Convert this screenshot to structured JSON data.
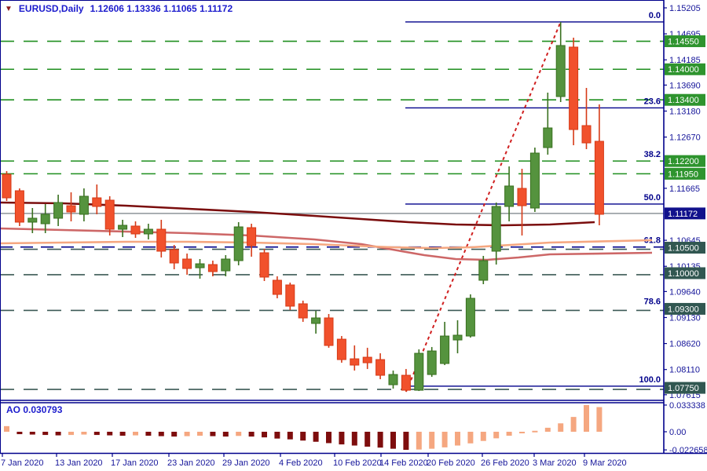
{
  "window": {
    "marker": "▼",
    "symbol_period": "EURUSD,Daily",
    "quote_line": "1.12606 1.13336 1.11065 1.11172"
  },
  "ao_panel": {
    "label_display": "AO 0.030793",
    "indicator_name": "AO",
    "current_value": "0.030793",
    "axis_labels": [
      "0.033338",
      "0.00",
      "-0.022658"
    ],
    "axis_values": [
      0.033338,
      0.0,
      -0.022658
    ]
  },
  "axes": {
    "price_labels": [
      "1.15205",
      "1.14695",
      "1.14185",
      "1.13690",
      "1.13180",
      "1.12670",
      "1.11665",
      "1.10645",
      "1.10135",
      "1.09640",
      "1.09130",
      "1.08620",
      "1.08110",
      "1.07615"
    ],
    "date_labels": [
      "7 Jan 2020",
      "13 Jan 2020",
      "17 Jan 2020",
      "23 Jan 2020",
      "29 Jan 2020",
      "4 Feb 2020",
      "10 Feb 2020",
      "14 Feb 2020",
      "20 Feb 2020",
      "26 Feb 2020",
      "3 Mar 2020",
      "9 Mar 2020"
    ]
  },
  "levels": {
    "green_badges": [
      "1.14550",
      "1.14000",
      "1.13400",
      "1.12200",
      "1.11950"
    ],
    "slate_badges": [
      "1.10500",
      "1.10000",
      "1.09300",
      "1.07750"
    ],
    "current_price_badge": "1.11172"
  },
  "fibonacci": {
    "swing_high": 1.14928,
    "swing_low": 1.07783,
    "levels": [
      {
        "label": "0.0",
        "ratio": 0.0
      },
      {
        "label": "23.6",
        "ratio": 0.236
      },
      {
        "label": "38.2",
        "ratio": 0.382
      },
      {
        "label": "50.0",
        "ratio": 0.5
      },
      {
        "label": "61.8",
        "ratio": 0.618
      },
      {
        "label": "78.6",
        "ratio": 0.786
      },
      {
        "label": "100.0",
        "ratio": 1.0
      }
    ]
  },
  "colors": {
    "axis_text": "#15159a",
    "title_text": "#1c1ccd",
    "navy_line": "#00008b",
    "green_badge": "#2e942e",
    "slate_badge": "#315751",
    "navy_badge": "#11118c",
    "green_dash": "#1f8f1f",
    "slate_dash": "#3c5a56",
    "gray_line": "#8e949a",
    "bull_fill": "#55933e",
    "bull_stroke": "#39701f",
    "bear_fill": "#f1512c",
    "bear_stroke": "#d63a17",
    "ma_slow": "#7a0d0d",
    "ma_mid": "#cd6767",
    "ma_fast": "#f5a780",
    "trend_line": "#d02020",
    "ao_rising": "#f5a780",
    "ao_falling": "#7e0d0d"
  },
  "chart_data": {
    "type": "candlestick",
    "symbol": "EURUSD",
    "timeframe": "Daily",
    "title": "EURUSD,Daily",
    "quote_ohlc": {
      "open": "1.12606",
      "high": "1.13336",
      "low": "1.11065",
      "close": "1.11172"
    },
    "price_axis_range": [
      1.07615,
      1.15205
    ],
    "date_axis_ticks_x": [
      3,
      72,
      143,
      215,
      285,
      357,
      426,
      485,
      545,
      614,
      680,
      744
    ],
    "candles_ohlc": [
      [
        1.1194,
        1.12002,
        1.11417,
        1.11478
      ],
      [
        1.11617,
        1.11663,
        1.10924,
        1.11001
      ],
      [
        1.11001,
        1.11278,
        1.10785,
        1.11078
      ],
      [
        1.1097,
        1.11355,
        1.10785,
        1.11155
      ],
      [
        1.11078,
        1.1154,
        1.10924,
        1.11386
      ],
      [
        1.11324,
        1.11586,
        1.11016,
        1.11201
      ],
      [
        1.11155,
        1.11663,
        1.11016,
        1.11509
      ],
      [
        1.11478,
        1.1174,
        1.11155,
        1.11309
      ],
      [
        1.11432,
        1.11509,
        1.10739,
        1.10862
      ],
      [
        1.10862,
        1.11047,
        1.10708,
        1.10939
      ],
      [
        1.10924,
        1.11016,
        1.10693,
        1.1077
      ],
      [
        1.1077,
        1.1097,
        1.10662,
        1.10862
      ],
      [
        1.10862,
        1.11047,
        1.10308,
        1.10431
      ],
      [
        1.10462,
        1.10554,
        1.10077,
        1.102
      ],
      [
        1.10277,
        1.10385,
        1.09969,
        1.10092
      ],
      [
        1.10107,
        1.10277,
        1.09892,
        1.10184
      ],
      [
        1.10169,
        1.10246,
        1.09938,
        1.10031
      ],
      [
        1.10046,
        1.10354,
        1.09938,
        1.10277
      ],
      [
        1.10246,
        1.11001,
        1.10154,
        1.10908
      ],
      [
        1.10893,
        1.1097,
        1.10323,
        1.10539
      ],
      [
        1.104,
        1.10477,
        1.09846,
        1.09923
      ],
      [
        1.09861,
        1.09938,
        1.09507,
        1.09584
      ],
      [
        1.09769,
        1.09815,
        1.09276,
        1.09353
      ],
      [
        1.09399,
        1.09461,
        1.09045,
        1.09122
      ],
      [
        1.09014,
        1.09261,
        1.08814,
        1.09122
      ],
      [
        1.09122,
        1.09199,
        1.08536,
        1.08582
      ],
      [
        1.08705,
        1.08767,
        1.08243,
        1.08305
      ],
      [
        1.0832,
        1.08582,
        1.08089,
        1.08197
      ],
      [
        1.08351,
        1.08536,
        1.0812,
        1.08243
      ],
      [
        1.08305,
        1.08428,
        1.0792,
        1.07997
      ],
      [
        1.07812,
        1.08089,
        1.07735,
        1.08012
      ],
      [
        1.07997,
        1.0812,
        1.07674,
        1.07704
      ],
      [
        1.07704,
        1.08505,
        1.07689,
        1.08428
      ],
      [
        1.08012,
        1.08551,
        1.07966,
        1.08474
      ],
      [
        1.08228,
        1.09045,
        1.08197,
        1.08767
      ],
      [
        1.0869,
        1.09076,
        1.08428,
        1.08783
      ],
      [
        1.08767,
        1.09584,
        1.08736,
        1.09507
      ],
      [
        1.09861,
        1.10339,
        1.09784,
        1.10246
      ],
      [
        1.10431,
        1.11386,
        1.10169,
        1.11309
      ],
      [
        1.11309,
        1.12094,
        1.11016,
        1.1171
      ],
      [
        1.11663,
        1.12048,
        1.10739,
        1.11324
      ],
      [
        1.11278,
        1.12464,
        1.11201,
        1.12356
      ],
      [
        1.12464,
        1.13542,
        1.12325,
        1.12849
      ],
      [
        1.13465,
        1.14928,
        1.13357,
        1.14466
      ],
      [
        1.14435,
        1.1462,
        1.1251,
        1.12818
      ],
      [
        1.12895,
        1.13634,
        1.12433,
        1.12556
      ],
      [
        1.12587,
        1.13311,
        1.10939,
        1.11155
      ]
    ],
    "ao_values": [
      0.007,
      -0.003,
      -0.0035,
      -0.004,
      -0.0045,
      -0.004,
      -0.0035,
      -0.004,
      -0.0045,
      -0.005,
      -0.0045,
      -0.005,
      -0.0055,
      -0.006,
      -0.0055,
      -0.005,
      -0.0055,
      -0.006,
      -0.0052,
      -0.006,
      -0.007,
      -0.0085,
      -0.0095,
      -0.011,
      -0.0125,
      -0.0142,
      -0.0158,
      -0.0172,
      -0.0186,
      -0.0198,
      -0.0212,
      -0.0226,
      -0.0222,
      -0.0212,
      -0.0195,
      -0.0172,
      -0.0145,
      -0.0115,
      -0.0082,
      -0.005,
      -0.002,
      0.0012,
      0.005,
      0.0105,
      0.0185,
      0.0333,
      0.030793
    ],
    "ao_force_rising_last_bar": true,
    "moving_averages": [
      {
        "name": "ma-slow-maroon",
        "points": [
          [
            0,
            258
          ],
          [
            80,
            259
          ],
          [
            160,
            262
          ],
          [
            240,
            266
          ],
          [
            320,
            270
          ],
          [
            400,
            275
          ],
          [
            460,
            279
          ],
          [
            520,
            283
          ],
          [
            580,
            286
          ],
          [
            640,
            287
          ],
          [
            700,
            286
          ],
          [
            757,
            283
          ]
        ]
      },
      {
        "name": "ma-mid-rose",
        "points": [
          [
            0,
            291
          ],
          [
            80,
            293
          ],
          [
            160,
            295
          ],
          [
            240,
            297
          ],
          [
            320,
            300
          ],
          [
            400,
            305
          ],
          [
            460,
            311
          ],
          [
            500,
            318
          ],
          [
            540,
            325
          ],
          [
            580,
            330
          ],
          [
            620,
            331
          ],
          [
            660,
            328
          ],
          [
            700,
            324
          ],
          [
            830,
            322
          ]
        ]
      },
      {
        "name": "ma-fast-salmon",
        "points": [
          [
            0,
            310
          ],
          [
            80,
            309
          ],
          [
            160,
            308
          ],
          [
            240,
            308
          ],
          [
            320,
            309
          ],
          [
            400,
            311
          ],
          [
            450,
            313
          ],
          [
            500,
            315
          ],
          [
            550,
            316
          ],
          [
            600,
            315
          ],
          [
            650,
            312
          ],
          [
            700,
            309
          ],
          [
            830,
            306
          ]
        ]
      }
    ],
    "trendline": {
      "from_bar": 31,
      "to_bar": 43,
      "style": "dashed-red"
    }
  }
}
